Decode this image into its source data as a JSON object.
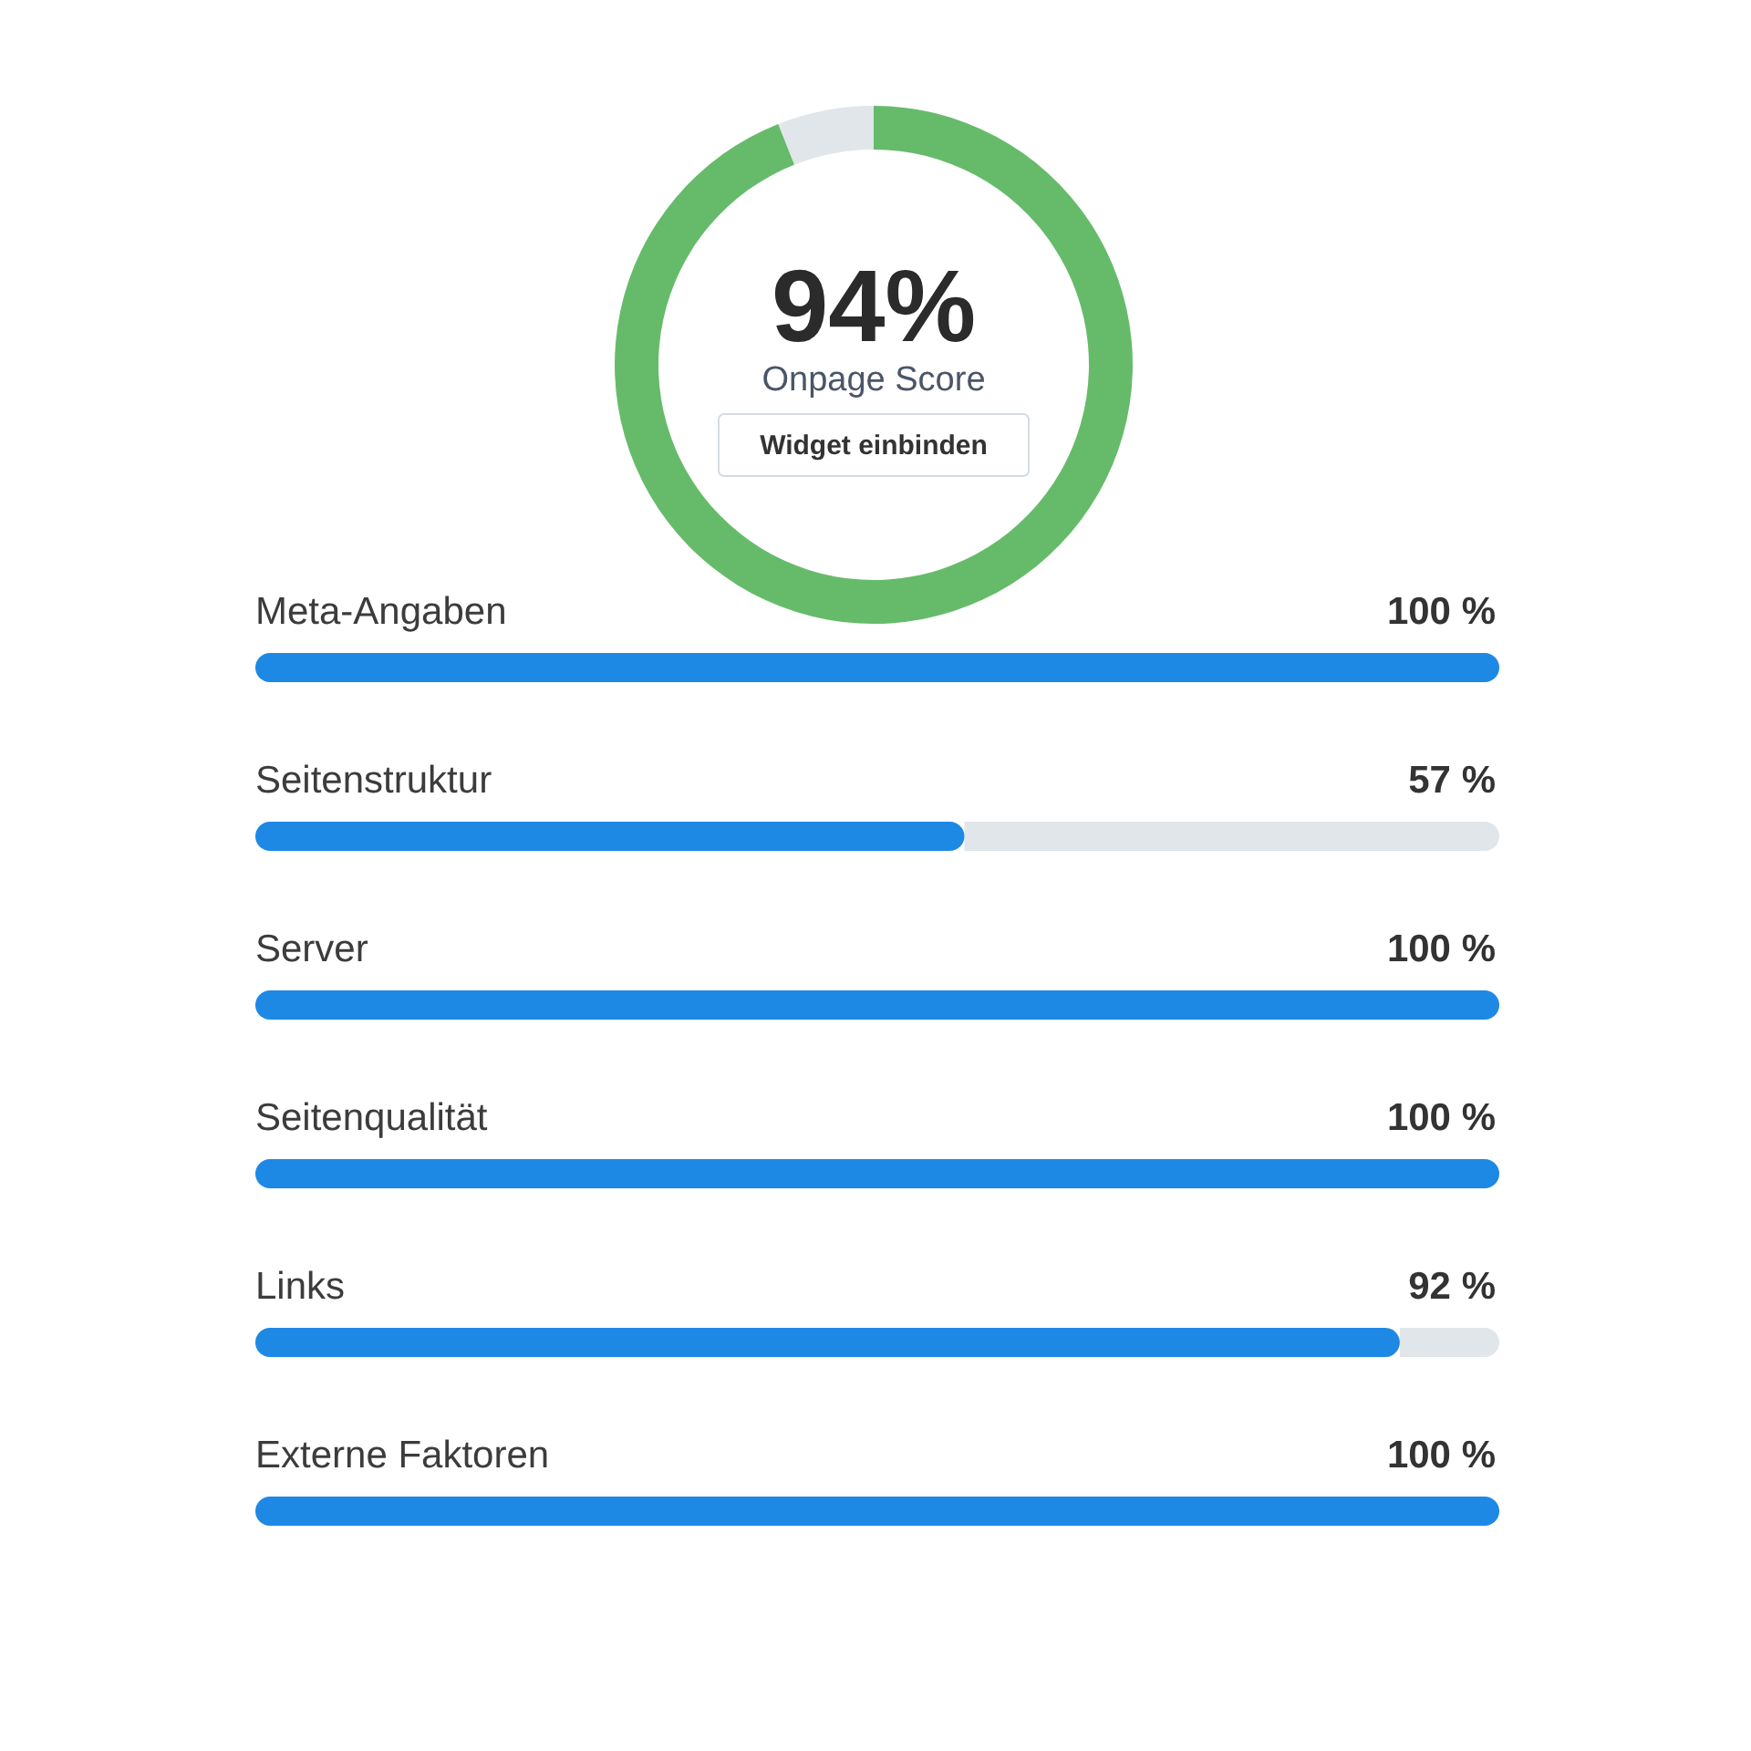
{
  "chart_data": [
    {
      "type": "donut",
      "title": "Onpage Score",
      "categories": [
        null,
        null
      ],
      "values": [
        94,
        6
      ],
      "colors": [
        "#66bb6a",
        "#e1e6ea"
      ],
      "value_labels": [
        "94%",
        null
      ],
      "annotations": [
        "Widget einbinden"
      ]
    },
    {
      "type": "bar",
      "orientation": "horizontal",
      "categories": [
        "Meta-Angaben",
        "Seitenstruktur",
        "Server",
        "Seitenqualität",
        "Links",
        "Externe Faktoren"
      ],
      "values": [
        100,
        57,
        100,
        100,
        92,
        100
      ],
      "value_labels": [
        "100 %",
        "57 %",
        "100 %",
        "100 %",
        "92 %",
        "100 %"
      ],
      "color": "#1e88e5",
      "xlim": [
        0,
        100
      ]
    }
  ]
}
